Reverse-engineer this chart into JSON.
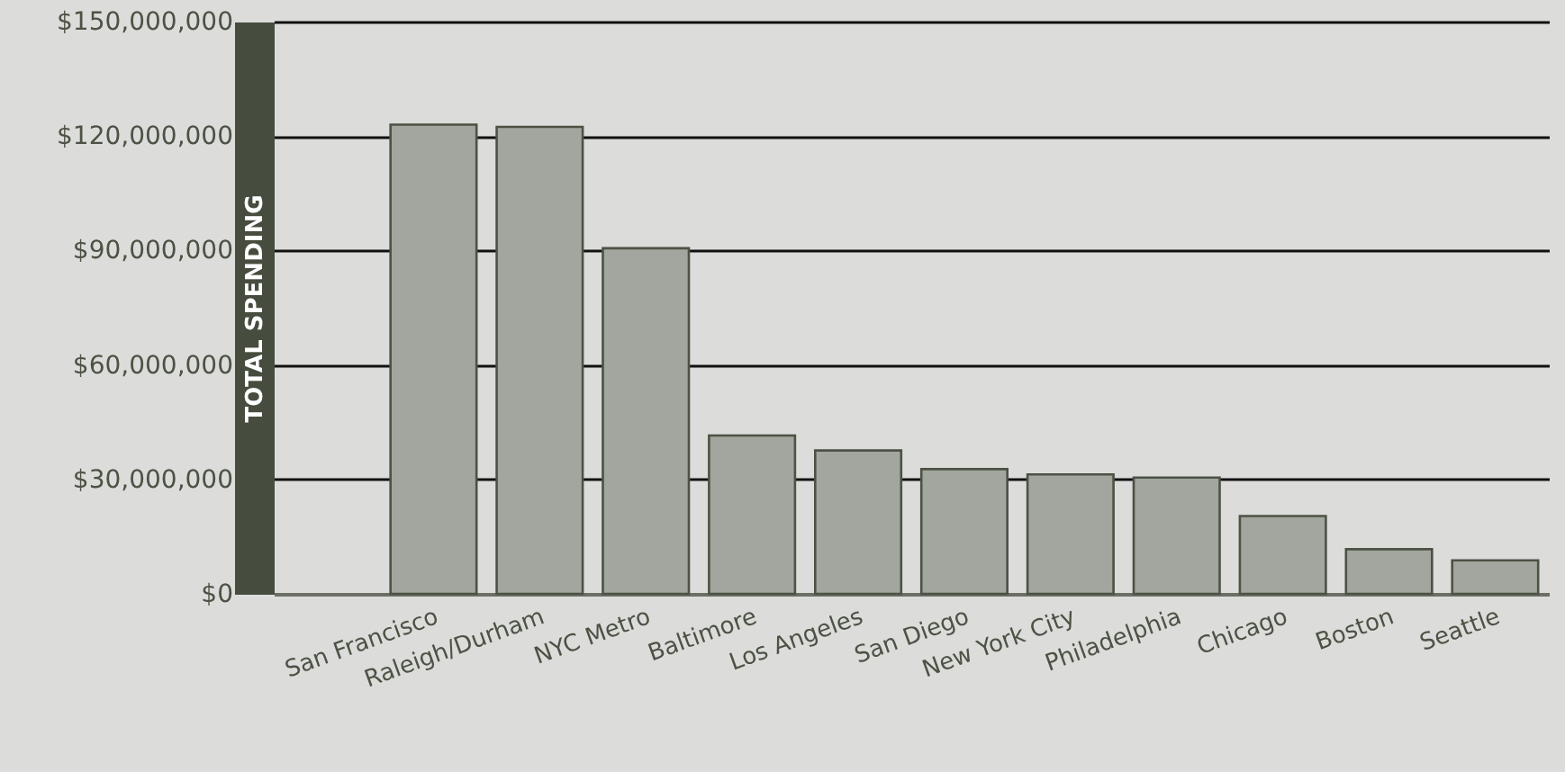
{
  "chart_data": {
    "type": "bar",
    "ylabel": "TOTAL SPENDING",
    "categories": [
      null,
      "San Francisco",
      "Raleigh/Durham",
      "NYC Metro",
      "Baltimore",
      "Los Angeles",
      "San Diego",
      "New York City",
      "Philadelphia",
      "Chicago",
      "Boston",
      "Seattle"
    ],
    "values": [
      null,
      123000000,
      122400000,
      90600000,
      41500000,
      37600000,
      32700000,
      31300000,
      30500000,
      20400000,
      11700000,
      8800000
    ],
    "color": "#a2a69e",
    "ylim": [
      0,
      150000000
    ],
    "yticks": [
      {
        "value": 0,
        "label": "$0"
      },
      {
        "value": 30000000,
        "label": "$30,000,000"
      },
      {
        "value": 60000000,
        "label": "$60,000,000"
      },
      {
        "value": 90000000,
        "label": "$90,000,000"
      },
      {
        "value": 120000000,
        "label": "$120,000,000"
      },
      {
        "value": 150000000,
        "label": "$150,000,000"
      }
    ],
    "grid": "y"
  }
}
